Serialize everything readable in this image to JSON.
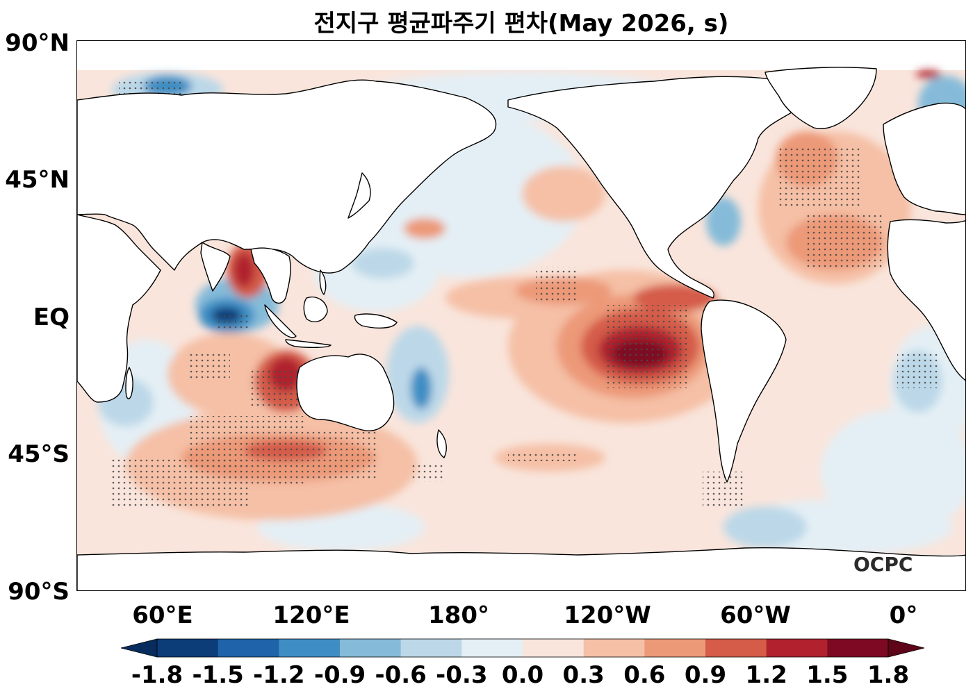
{
  "title": "전지구 평균파주기 편차(May 2026, s)",
  "lat_labels": [
    "90°N",
    "45°N",
    "EQ",
    "45°S",
    "90°S"
  ],
  "lon_labels": [
    "60°E",
    "120°E",
    "180°",
    "120°W",
    "60°W",
    "0°"
  ],
  "logo": "OCPC",
  "colorbar": {
    "ticks": [
      "-1.8",
      "-1.5",
      "-1.2",
      "-0.9",
      "-0.6",
      "-0.3",
      "0.0",
      "0.3",
      "0.6",
      "0.9",
      "1.2",
      "1.5",
      "1.8"
    ],
    "colors": [
      "#0d3d78",
      "#1f63a8",
      "#3e8ec4",
      "#85bbd9",
      "#bcd8e8",
      "#e4eff5",
      "#f9e5dc",
      "#f5c0a6",
      "#ec9978",
      "#d45c48",
      "#b0222e",
      "#7d0a22"
    ],
    "under_color": "#082c5e",
    "over_color": "#5e0519"
  },
  "stipple_color": "#4a4a4a",
  "land_color": "#ffffff",
  "ocean_base_color": "#f9e5dc"
}
